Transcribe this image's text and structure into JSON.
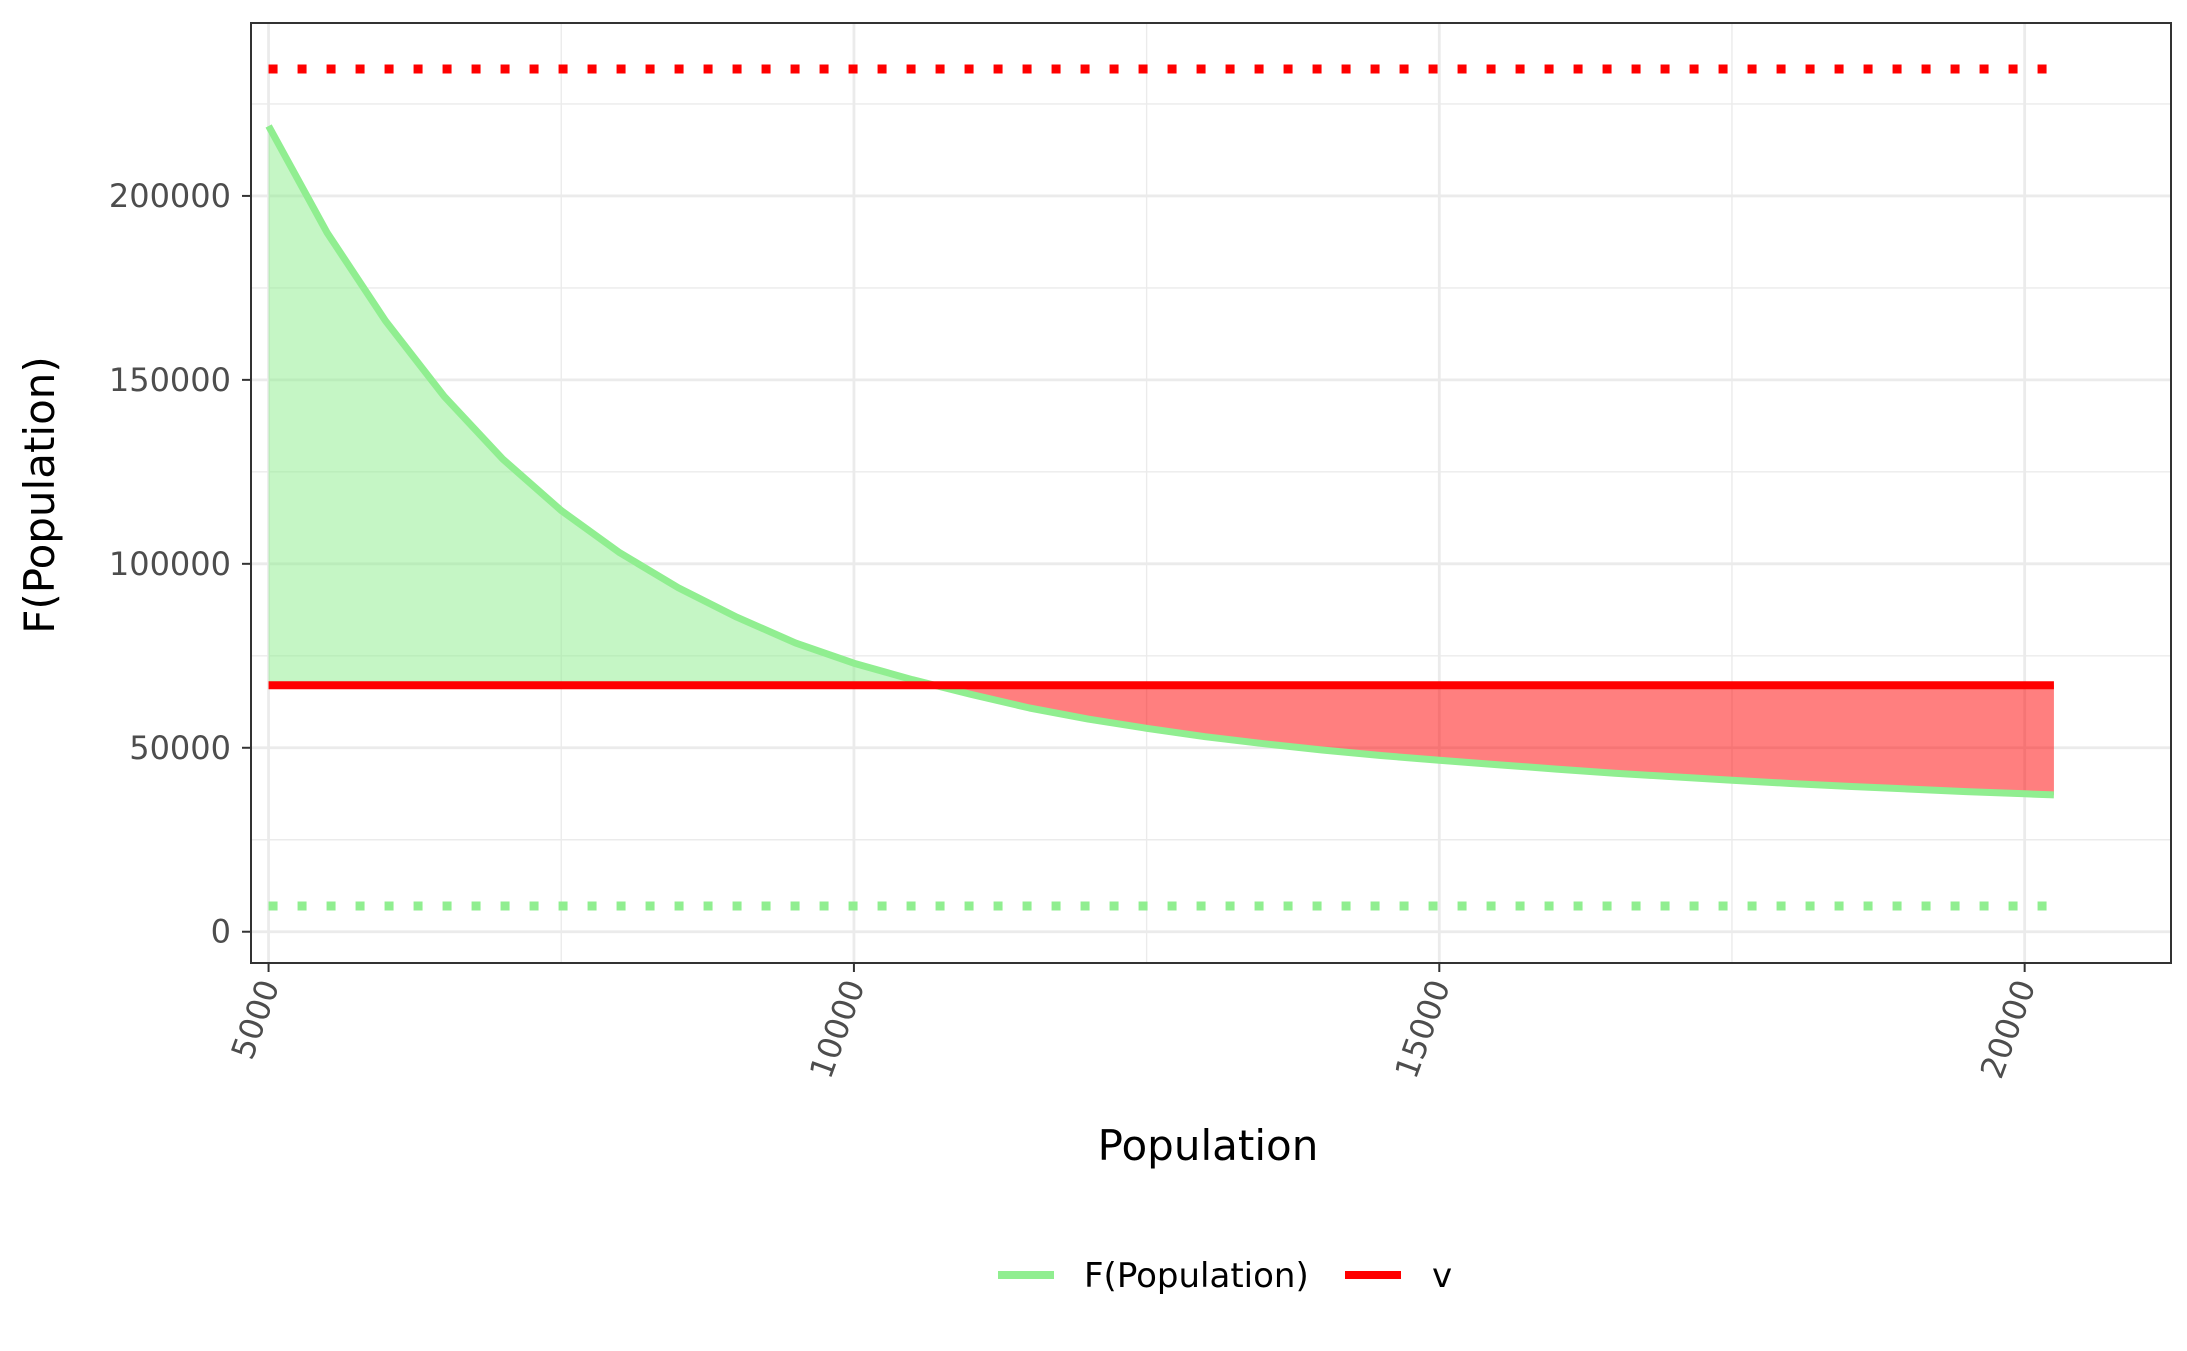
{
  "chart_data": {
    "type": "area",
    "xlabel": "Population",
    "ylabel": "F(Population)",
    "xlim": [
      4850,
      21250
    ],
    "ylim": [
      -8500,
      247000
    ],
    "x_ticks": [
      5000,
      10000,
      15000,
      20000
    ],
    "x_tick_labels": [
      "5000",
      "10000",
      "15000",
      "20000"
    ],
    "y_ticks": [
      0,
      50000,
      100000,
      150000,
      200000
    ],
    "y_tick_labels": [
      "0",
      "50000",
      "100000",
      "150000",
      "200000"
    ],
    "x_minor_ticks": [
      7500,
      12500,
      17500
    ],
    "y_minor_ticks": [
      25000,
      75000,
      125000,
      175000,
      225000
    ],
    "grid": true,
    "legend_position": "bottom",
    "colors": {
      "curve": "#90ee90",
      "v_line": "#ff0000",
      "fill_above": "#90ee90",
      "fill_below": "#ff0000",
      "grid": "#ebebeb",
      "panel_border": "#333333"
    },
    "series": [
      {
        "name": "F(Population)",
        "x": [
          5000,
          5500,
          6000,
          6500,
          7000,
          7500,
          8000,
          8500,
          9000,
          9500,
          10000,
          10500,
          11000,
          11500,
          12000,
          12500,
          13000,
          13500,
          14000,
          14500,
          15000,
          15500,
          16000,
          16500,
          17000,
          17500,
          18000,
          18500,
          19000,
          19500,
          20000,
          20250
        ],
        "y": [
          219000,
          190000,
          166000,
          145500,
          128500,
          114500,
          103000,
          93500,
          85500,
          78500,
          73000,
          68500,
          64500,
          60800,
          57800,
          55300,
          53000,
          51100,
          49400,
          47900,
          46600,
          45400,
          44200,
          43100,
          42100,
          41200,
          40300,
          39500,
          38800,
          38100,
          37500,
          37200
        ]
      },
      {
        "name": "v",
        "x": [
          5000,
          20250
        ],
        "y": [
          67000,
          67000
        ]
      }
    ],
    "reference_lines": [
      {
        "y": 234500,
        "color": "#ff0000",
        "style": "dotted"
      },
      {
        "y": 7000,
        "color": "#90ee90",
        "style": "dotted"
      }
    ]
  }
}
